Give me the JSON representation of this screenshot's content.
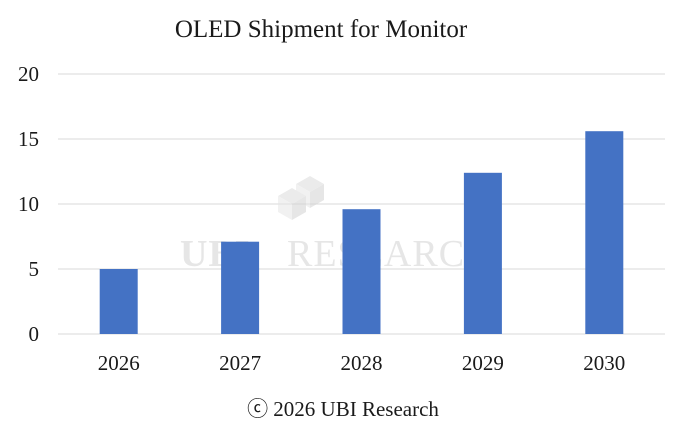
{
  "chart_data": {
    "type": "bar",
    "title": "OLED Shipment for Monitor",
    "categories": [
      "2026",
      "2027",
      "2028",
      "2029",
      "2030"
    ],
    "values": [
      5.0,
      7.1,
      9.6,
      12.4,
      15.6
    ],
    "ylim": [
      0,
      20
    ],
    "yticks": [
      0,
      5,
      10,
      15,
      20
    ],
    "xlabel": "",
    "ylabel": "",
    "grid": true,
    "legend": "none",
    "bar_color": "#4472c4"
  },
  "footer": {
    "copyright": "ⓒ 2026 UBI Research"
  },
  "watermark": {
    "brand_mark": "UBI",
    "brand_text": "RESEARCH"
  },
  "colors": {
    "gridline": "#d9d9d9",
    "bar": "#4472c4",
    "watermark": "#e6e6e6"
  }
}
